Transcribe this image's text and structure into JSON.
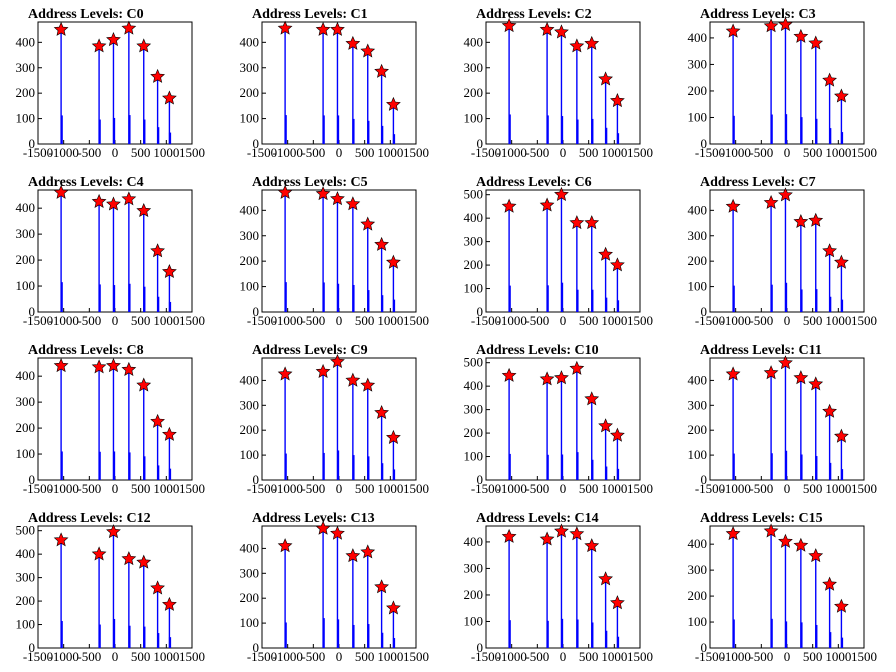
{
  "chart_data": [
    {
      "type": "bar",
      "title": "Address Levels: C0",
      "xlim": [
        -1500,
        1500
      ],
      "xticks": [
        "-1500",
        "-1000",
        "-500",
        "0",
        "500",
        "1000",
        "1500"
      ],
      "ylim": [
        0,
        480
      ],
      "yticks": [
        "0",
        "100",
        "200",
        "300",
        "400"
      ],
      "markers": [
        {
          "x": -1050,
          "y": 450
        },
        {
          "x": -310,
          "y": 385
        },
        {
          "x": -30,
          "y": 410
        },
        {
          "x": 270,
          "y": 455
        },
        {
          "x": 560,
          "y": 385
        },
        {
          "x": 830,
          "y": 265
        },
        {
          "x": 1060,
          "y": 180
        }
      ]
    },
    {
      "type": "bar",
      "title": "Address Levels: C1",
      "xlim": [
        -1500,
        1500
      ],
      "xticks": [
        "-1500",
        "-1000",
        "-500",
        "0",
        "500",
        "1000",
        "1500"
      ],
      "ylim": [
        0,
        480
      ],
      "yticks": [
        "0",
        "100",
        "200",
        "300",
        "400"
      ],
      "markers": [
        {
          "x": -1050,
          "y": 455
        },
        {
          "x": -310,
          "y": 450
        },
        {
          "x": -30,
          "y": 450
        },
        {
          "x": 270,
          "y": 395
        },
        {
          "x": 560,
          "y": 365
        },
        {
          "x": 830,
          "y": 285
        },
        {
          "x": 1060,
          "y": 155
        }
      ]
    },
    {
      "type": "bar",
      "title": "Address Levels: C2",
      "xlim": [
        -1500,
        1500
      ],
      "xticks": [
        "-1500",
        "-1000",
        "-500",
        "0",
        "500",
        "1000",
        "1500"
      ],
      "ylim": [
        0,
        480
      ],
      "yticks": [
        "0",
        "100",
        "200",
        "300",
        "400"
      ],
      "markers": [
        {
          "x": -1050,
          "y": 465
        },
        {
          "x": -310,
          "y": 450
        },
        {
          "x": -30,
          "y": 440
        },
        {
          "x": 270,
          "y": 385
        },
        {
          "x": 560,
          "y": 395
        },
        {
          "x": 830,
          "y": 255
        },
        {
          "x": 1060,
          "y": 170
        }
      ]
    },
    {
      "type": "bar",
      "title": "Address Levels: C3",
      "xlim": [
        -1500,
        1500
      ],
      "xticks": [
        "-1500",
        "-1000",
        "-500",
        "0",
        "500",
        "1000",
        "1500"
      ],
      "ylim": [
        0,
        460
      ],
      "yticks": [
        "0",
        "100",
        "200",
        "300",
        "400"
      ],
      "markers": [
        {
          "x": -1050,
          "y": 425
        },
        {
          "x": -310,
          "y": 445
        },
        {
          "x": -30,
          "y": 450
        },
        {
          "x": 270,
          "y": 405
        },
        {
          "x": 560,
          "y": 380
        },
        {
          "x": 830,
          "y": 240
        },
        {
          "x": 1060,
          "y": 180
        }
      ]
    },
    {
      "type": "bar",
      "title": "Address Levels: C4",
      "xlim": [
        -1500,
        1500
      ],
      "xticks": [
        "-1500",
        "-1000",
        "-500",
        "0",
        "500",
        "1000",
        "1500"
      ],
      "ylim": [
        0,
        470
      ],
      "yticks": [
        "0",
        "100",
        "200",
        "300",
        "400"
      ],
      "markers": [
        {
          "x": -1050,
          "y": 460
        },
        {
          "x": -310,
          "y": 425
        },
        {
          "x": -30,
          "y": 415
        },
        {
          "x": 270,
          "y": 435
        },
        {
          "x": 560,
          "y": 390
        },
        {
          "x": 830,
          "y": 235
        },
        {
          "x": 1060,
          "y": 155
        }
      ]
    },
    {
      "type": "bar",
      "title": "Address Levels: C5",
      "xlim": [
        -1500,
        1500
      ],
      "xticks": [
        "-1500",
        "-1000",
        "-500",
        "0",
        "500",
        "1000",
        "1500"
      ],
      "ylim": [
        0,
        480
      ],
      "yticks": [
        "0",
        "100",
        "200",
        "300",
        "400"
      ],
      "markers": [
        {
          "x": -1050,
          "y": 470
        },
        {
          "x": -310,
          "y": 465
        },
        {
          "x": -30,
          "y": 445
        },
        {
          "x": 270,
          "y": 425
        },
        {
          "x": 560,
          "y": 345
        },
        {
          "x": 830,
          "y": 265
        },
        {
          "x": 1060,
          "y": 195
        }
      ]
    },
    {
      "type": "bar",
      "title": "Address Levels: C6",
      "xlim": [
        -1500,
        1500
      ],
      "xticks": [
        "-1500",
        "-1000",
        "-500",
        "0",
        "500",
        "1000",
        "1500"
      ],
      "ylim": [
        0,
        520
      ],
      "yticks": [
        "0",
        "100",
        "200",
        "300",
        "400",
        "500"
      ],
      "markers": [
        {
          "x": -1050,
          "y": 450
        },
        {
          "x": -310,
          "y": 455
        },
        {
          "x": -30,
          "y": 500
        },
        {
          "x": 270,
          "y": 380
        },
        {
          "x": 560,
          "y": 380
        },
        {
          "x": 830,
          "y": 245
        },
        {
          "x": 1060,
          "y": 200
        }
      ]
    },
    {
      "type": "bar",
      "title": "Address Levels: C7",
      "xlim": [
        -1500,
        1500
      ],
      "xticks": [
        "-1500",
        "-1000",
        "-500",
        "0",
        "500",
        "1000",
        "1500"
      ],
      "ylim": [
        0,
        480
      ],
      "yticks": [
        "0",
        "100",
        "200",
        "300",
        "400"
      ],
      "markers": [
        {
          "x": -1050,
          "y": 415
        },
        {
          "x": -310,
          "y": 430
        },
        {
          "x": -30,
          "y": 460
        },
        {
          "x": 270,
          "y": 355
        },
        {
          "x": 560,
          "y": 360
        },
        {
          "x": 830,
          "y": 240
        },
        {
          "x": 1060,
          "y": 195
        }
      ]
    },
    {
      "type": "bar",
      "title": "Address Levels: C8",
      "xlim": [
        -1500,
        1500
      ],
      "xticks": [
        "-1500",
        "-1000",
        "-500",
        "0",
        "500",
        "1000",
        "1500"
      ],
      "ylim": [
        0,
        470
      ],
      "yticks": [
        "0",
        "100",
        "200",
        "300",
        "400"
      ],
      "markers": [
        {
          "x": -1050,
          "y": 440
        },
        {
          "x": -310,
          "y": 435
        },
        {
          "x": -30,
          "y": 440
        },
        {
          "x": 270,
          "y": 425
        },
        {
          "x": 560,
          "y": 365
        },
        {
          "x": 830,
          "y": 225
        },
        {
          "x": 1060,
          "y": 175
        }
      ]
    },
    {
      "type": "bar",
      "title": "Address Levels: C9",
      "xlim": [
        -1500,
        1500
      ],
      "xticks": [
        "-1500",
        "-1000",
        "-500",
        "0",
        "500",
        "1000",
        "1500"
      ],
      "ylim": [
        0,
        490
      ],
      "yticks": [
        "0",
        "100",
        "200",
        "300",
        "400"
      ],
      "markers": [
        {
          "x": -1050,
          "y": 425
        },
        {
          "x": -310,
          "y": 435
        },
        {
          "x": -30,
          "y": 475
        },
        {
          "x": 270,
          "y": 400
        },
        {
          "x": 560,
          "y": 380
        },
        {
          "x": 830,
          "y": 270
        },
        {
          "x": 1060,
          "y": 170
        }
      ]
    },
    {
      "type": "bar",
      "title": "Address Levels: C10",
      "xlim": [
        -1500,
        1500
      ],
      "xticks": [
        "-1500",
        "-1000",
        "-500",
        "0",
        "500",
        "1000",
        "1500"
      ],
      "ylim": [
        0,
        520
      ],
      "yticks": [
        "0",
        "100",
        "200",
        "300",
        "400",
        "500"
      ],
      "markers": [
        {
          "x": -1050,
          "y": 445
        },
        {
          "x": -310,
          "y": 430
        },
        {
          "x": -30,
          "y": 435
        },
        {
          "x": 270,
          "y": 475
        },
        {
          "x": 560,
          "y": 345
        },
        {
          "x": 830,
          "y": 230
        },
        {
          "x": 1060,
          "y": 190
        }
      ]
    },
    {
      "type": "bar",
      "title": "Address Levels: C11",
      "xlim": [
        -1500,
        1500
      ],
      "xticks": [
        "-1500",
        "-1000",
        "-500",
        "0",
        "500",
        "1000",
        "1500"
      ],
      "ylim": [
        0,
        490
      ],
      "yticks": [
        "0",
        "100",
        "200",
        "300",
        "400"
      ],
      "markers": [
        {
          "x": -1050,
          "y": 425
        },
        {
          "x": -310,
          "y": 430
        },
        {
          "x": -30,
          "y": 470
        },
        {
          "x": 270,
          "y": 410
        },
        {
          "x": 560,
          "y": 385
        },
        {
          "x": 830,
          "y": 275
        },
        {
          "x": 1060,
          "y": 175
        }
      ]
    },
    {
      "type": "bar",
      "title": "Address Levels: C12",
      "xlim": [
        -1500,
        1500
      ],
      "xticks": [
        "-1500",
        "-1000",
        "-500",
        "0",
        "500",
        "1000",
        "1500"
      ],
      "ylim": [
        0,
        520
      ],
      "yticks": [
        "0",
        "100",
        "200",
        "300",
        "400",
        "500"
      ],
      "markers": [
        {
          "x": -1050,
          "y": 460
        },
        {
          "x": -310,
          "y": 400
        },
        {
          "x": -30,
          "y": 495
        },
        {
          "x": 270,
          "y": 380
        },
        {
          "x": 560,
          "y": 365
        },
        {
          "x": 830,
          "y": 255
        },
        {
          "x": 1060,
          "y": 185
        }
      ]
    },
    {
      "type": "bar",
      "title": "Address Levels: C13",
      "xlim": [
        -1500,
        1500
      ],
      "xticks": [
        "-1500",
        "-1000",
        "-500",
        "0",
        "500",
        "1000",
        "1500"
      ],
      "ylim": [
        0,
        490
      ],
      "yticks": [
        "0",
        "100",
        "200",
        "300",
        "400"
      ],
      "markers": [
        {
          "x": -1050,
          "y": 410
        },
        {
          "x": -310,
          "y": 480
        },
        {
          "x": -30,
          "y": 460
        },
        {
          "x": 270,
          "y": 370
        },
        {
          "x": 560,
          "y": 385
        },
        {
          "x": 830,
          "y": 245
        },
        {
          "x": 1060,
          "y": 160
        }
      ]
    },
    {
      "type": "bar",
      "title": "Address Levels: C14",
      "xlim": [
        -1500,
        1500
      ],
      "xticks": [
        "-1500",
        "-1000",
        "-500",
        "0",
        "500",
        "1000",
        "1500"
      ],
      "ylim": [
        0,
        460
      ],
      "yticks": [
        "0",
        "100",
        "200",
        "300",
        "400"
      ],
      "markers": [
        {
          "x": -1050,
          "y": 420
        },
        {
          "x": -310,
          "y": 410
        },
        {
          "x": -30,
          "y": 440
        },
        {
          "x": 270,
          "y": 430
        },
        {
          "x": 560,
          "y": 385
        },
        {
          "x": 830,
          "y": 260
        },
        {
          "x": 1060,
          "y": 170
        }
      ]
    },
    {
      "type": "bar",
      "title": "Address Levels: C15",
      "xlim": [
        -1500,
        1500
      ],
      "xticks": [
        "-1500",
        "-1000",
        "-500",
        "0",
        "500",
        "1000",
        "1500"
      ],
      "ylim": [
        0,
        470
      ],
      "yticks": [
        "0",
        "100",
        "200",
        "300",
        "400"
      ],
      "markers": [
        {
          "x": -1050,
          "y": 440
        },
        {
          "x": -310,
          "y": 450
        },
        {
          "x": -30,
          "y": 410
        },
        {
          "x": 270,
          "y": 395
        },
        {
          "x": 560,
          "y": 355
        },
        {
          "x": 830,
          "y": 245
        },
        {
          "x": 1060,
          "y": 160
        }
      ]
    }
  ],
  "colors": {
    "bar": "#0000ff",
    "marker_fill": "#ff0000",
    "marker_stroke": "#000000",
    "axis": "#000000"
  }
}
